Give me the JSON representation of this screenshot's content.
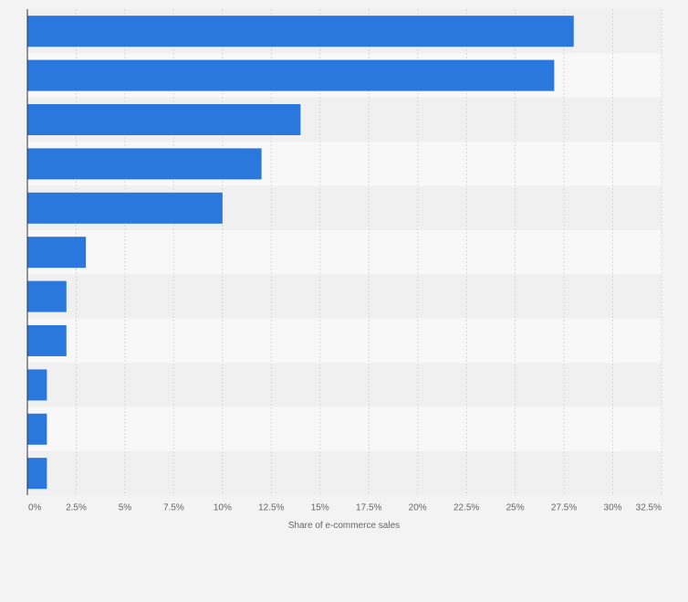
{
  "chart_data": {
    "type": "bar",
    "orientation": "horizontal",
    "categories": [
      "",
      "",
      "",
      "",
      "",
      "",
      "",
      "",
      "",
      "",
      ""
    ],
    "values": [
      28,
      27,
      14,
      12,
      10,
      3,
      2,
      2,
      1,
      1,
      1
    ],
    "title": "",
    "xlabel": "Share of e-commerce sales",
    "ylabel": "",
    "xlim": [
      0,
      32.5
    ],
    "x_ticks": [
      0,
      2.5,
      5,
      7.5,
      10,
      12.5,
      15,
      17.5,
      20,
      22.5,
      25,
      27.5,
      30,
      32.5
    ],
    "x_tick_labels": [
      "0%",
      "2.5%",
      "5%",
      "7.5%",
      "10%",
      "12.5%",
      "15%",
      "17.5%",
      "20%",
      "22.5%",
      "25%",
      "27.5%",
      "30%",
      "32.5%"
    ],
    "grid": true,
    "legend": "none",
    "bar_color": "#2a77dd",
    "band_colors": [
      "#f0f0f0",
      "#f8f8f8"
    ],
    "background_color": "#f3f3f3"
  }
}
